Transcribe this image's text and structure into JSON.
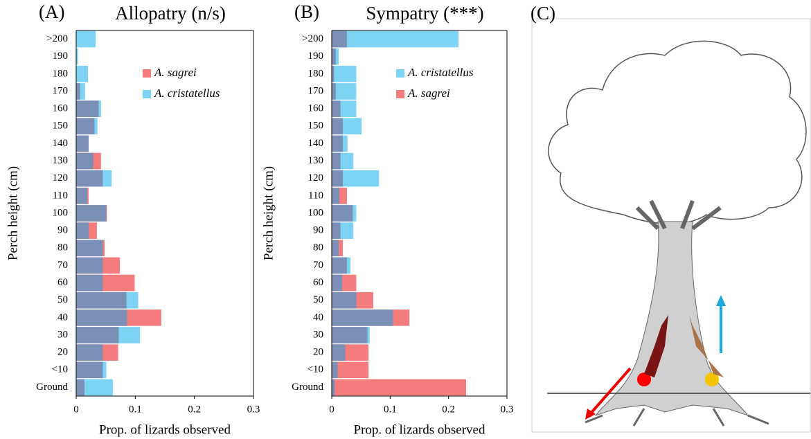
{
  "chart_data": [
    {
      "type": "overlap_barh",
      "panel_label": "(A)",
      "title": "Allopatry (n/s)",
      "y_label": "Perch height (cm)",
      "x_label": "Prop. of lizards observed",
      "categories": [
        "Ground",
        "<10",
        "20",
        "30",
        "40",
        "50",
        "60",
        "70",
        "80",
        "90",
        "100",
        "110",
        "120",
        "130",
        "140",
        "150",
        "160",
        "170",
        "180",
        "190",
        ">200"
      ],
      "series": [
        {
          "name": "A. sagrei",
          "color": "#f47c7c",
          "values": [
            0.014,
            0.045,
            0.071,
            0.072,
            0.144,
            0.085,
            0.099,
            0.074,
            0.048,
            0.035,
            0.052,
            0.021,
            0.045,
            0.042,
            0.021,
            0.031,
            0.038,
            0.007,
            0,
            0,
            0
          ]
        },
        {
          "name": "A. cristatellus",
          "color": "#7dd3f3",
          "values": [
            0.062,
            0.051,
            0.045,
            0.108,
            0.086,
            0.105,
            0.045,
            0.045,
            0.045,
            0.021,
            0.051,
            0.019,
            0.06,
            0.029,
            0.021,
            0.036,
            0.042,
            0.015,
            0.02,
            0.003,
            0.033
          ]
        }
      ],
      "overlap_color": "#7b8fb7",
      "xlim": [
        0,
        0.3
      ],
      "xticks": [
        0,
        0.1,
        0.2,
        0.3
      ],
      "legend": "upper right"
    },
    {
      "type": "overlap_barh",
      "panel_label": "(B)",
      "title": "Sympatry (***)",
      "y_label": "Perch height (cm)",
      "x_label": "Prop. of lizards observed",
      "categories": [
        "Ground",
        "<10",
        "20",
        "30",
        "40",
        "50",
        "60",
        "70",
        "80",
        "90",
        "100",
        "110",
        "120",
        "130",
        "140",
        "150",
        "160",
        "170",
        "180",
        "190",
        ">200"
      ],
      "series": [
        {
          "name": "A. cristatellus",
          "color": "#7dd3f3",
          "values": [
            0.005,
            0.01,
            0.023,
            0.065,
            0.105,
            0.042,
            0.018,
            0.032,
            0.012,
            0.037,
            0.042,
            0.013,
            0.081,
            0.037,
            0.027,
            0.051,
            0.042,
            0.042,
            0.042,
            0.012,
            0.217
          ]
        },
        {
          "name": "A. sagrei",
          "color": "#f47c7c",
          "values": [
            0.23,
            0.063,
            0.063,
            0.061,
            0.133,
            0.071,
            0.042,
            0.026,
            0.019,
            0.015,
            0.036,
            0.026,
            0.019,
            0.015,
            0.019,
            0.019,
            0.015,
            0.007,
            0.004,
            0.007,
            0.026
          ]
        }
      ],
      "overlap_color": "#7b8fb7",
      "xlim": [
        0,
        0.3
      ],
      "xticks": [
        0,
        0.1,
        0.2,
        0.3
      ],
      "legend": "upper right"
    }
  ],
  "illustration": {
    "panel_label": "(C)"
  }
}
